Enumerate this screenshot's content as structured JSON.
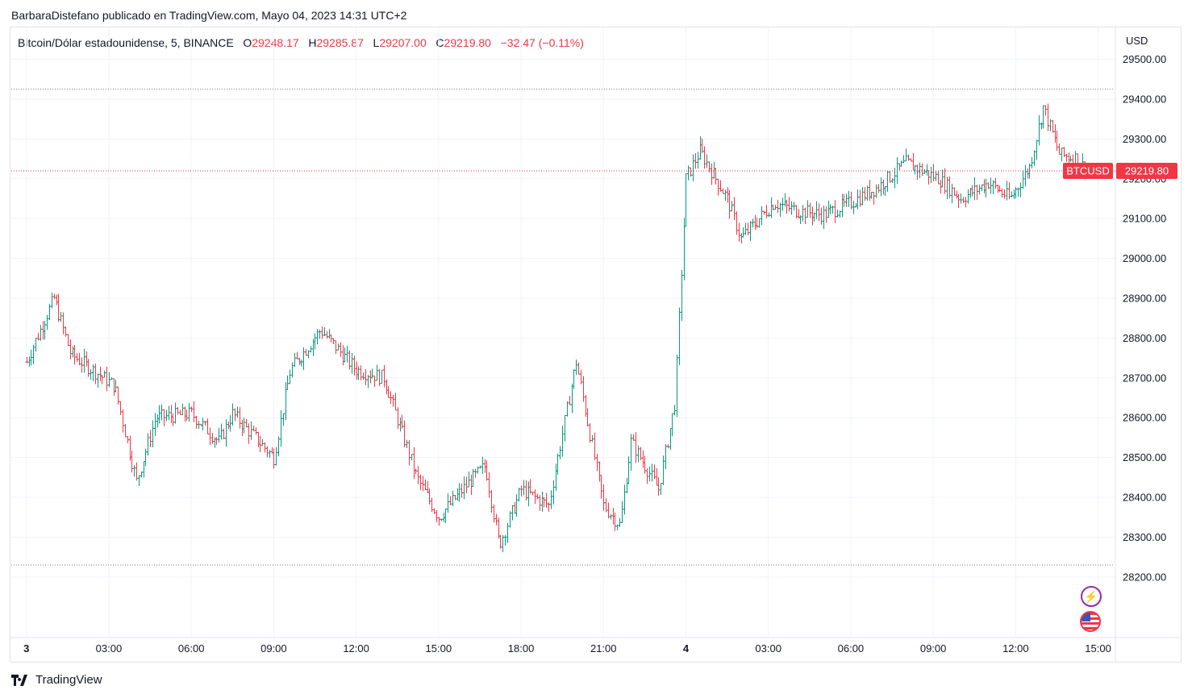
{
  "publisher_line": "BarbaraDistefano publicado en TradingView.com, Mayo 04, 2023 14:31 UTC+2",
  "legend": {
    "symbol": "Bitcoin/Dólar estadounidense, 5, BINANCE",
    "o_label": "O",
    "o_value": "29248.17",
    "h_label": "H",
    "h_value": "29285.87",
    "l_label": "L",
    "l_value": "29207.00",
    "c_label": "C",
    "c_value": "29219.80",
    "change": "−32.47 (−0.11%)"
  },
  "currency": "USD",
  "price_tag": {
    "ticker": "BTCUSD",
    "price": "29219.80"
  },
  "footer": {
    "brand": "TradingView"
  },
  "colors": {
    "up": "#089981",
    "down": "#f23645",
    "grid": "#f0f3fa",
    "text": "#131722",
    "dotted": "#787b86"
  },
  "icons": [
    "lightning-icon",
    "us-flag-icon",
    "tradingview-logo-icon"
  ],
  "chart_data": {
    "type": "ohlc",
    "interval": "5",
    "exchange": "BINANCE",
    "ylim": [
      28050,
      29580
    ],
    "y_ticks": [
      "29500.00",
      "29400.00",
      "29300.00",
      "29200.00",
      "29100.00",
      "29000.00",
      "28900.00",
      "28800.00",
      "28700.00",
      "28600.00",
      "28500.00",
      "28400.00",
      "28300.00",
      "28200.00"
    ],
    "x_ticks": [
      "3",
      "03:00",
      "06:00",
      "09:00",
      "12:00",
      "15:00",
      "18:00",
      "21:00",
      "4",
      "03:00",
      "06:00",
      "09:00",
      "12:00",
      "15:00"
    ],
    "x_tick_hours": [
      0,
      3,
      6,
      9,
      12,
      15,
      18,
      21,
      24,
      27,
      30,
      33,
      36,
      39
    ],
    "x_range_hours": [
      -0.55,
      39.6
    ],
    "visible_high": 29425,
    "visible_low": 28230,
    "last_price": 29219.8,
    "path": [
      [
        0,
        28740
      ],
      [
        1,
        28900
      ],
      [
        1.6,
        28760
      ],
      [
        3.2,
        28680
      ],
      [
        4,
        28440
      ],
      [
        4.7,
        28600
      ],
      [
        6,
        28610
      ],
      [
        7,
        28540
      ],
      [
        7.5,
        28610
      ],
      [
        9,
        28500
      ],
      [
        9.6,
        28720
      ],
      [
        10.7,
        28820
      ],
      [
        12,
        28720
      ],
      [
        13,
        28700
      ],
      [
        14.2,
        28450
      ],
      [
        15,
        28350
      ],
      [
        16,
        28430
      ],
      [
        16.7,
        28480
      ],
      [
        17.2,
        28280
      ],
      [
        18,
        28420
      ],
      [
        19,
        28380
      ],
      [
        20,
        28740
      ],
      [
        21,
        28380
      ],
      [
        21.6,
        28330
      ],
      [
        22,
        28540
      ],
      [
        23,
        28420
      ],
      [
        23.6,
        28640
      ],
      [
        24,
        29200
      ],
      [
        24.5,
        29270
      ],
      [
        25.5,
        29150
      ],
      [
        26,
        29050
      ],
      [
        27.2,
        29140
      ],
      [
        28,
        29120
      ],
      [
        29,
        29110
      ],
      [
        30,
        29140
      ],
      [
        31,
        29180
      ],
      [
        32,
        29240
      ],
      [
        33.2,
        29200
      ],
      [
        34,
        29150
      ],
      [
        35,
        29190
      ],
      [
        35.8,
        29150
      ],
      [
        36.5,
        29230
      ],
      [
        37,
        29380
      ],
      [
        37.6,
        29260
      ],
      [
        38.3,
        29250
      ],
      [
        38.5,
        29219.8
      ]
    ],
    "series": [
      {
        "name": "BTCUSD",
        "values_ref": "path"
      }
    ]
  }
}
